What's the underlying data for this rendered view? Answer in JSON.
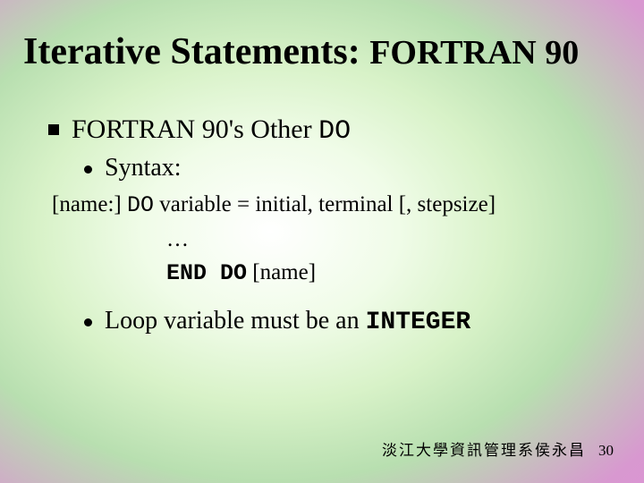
{
  "title_main": "Iterative Statements: ",
  "title_sub": "FORTRAN 90",
  "bullet1_pre": "FORTRAN 90's Other ",
  "bullet1_code": "DO",
  "bullet2": "Syntax:",
  "syntax_l1_a": "[name:] ",
  "syntax_l1_b": "DO",
  "syntax_l1_c": " variable = initial, terminal [, stepsize]",
  "syntax_l2": "…",
  "syntax_l3_a": "END DO",
  "syntax_l3_b": " [name]",
  "bullet3_a": "Loop variable must be an ",
  "bullet3_b": "INTEGER",
  "footer_text": "淡江大學資訊管理系侯永昌",
  "page_num": "30",
  "colors": {
    "text": "#000000"
  }
}
